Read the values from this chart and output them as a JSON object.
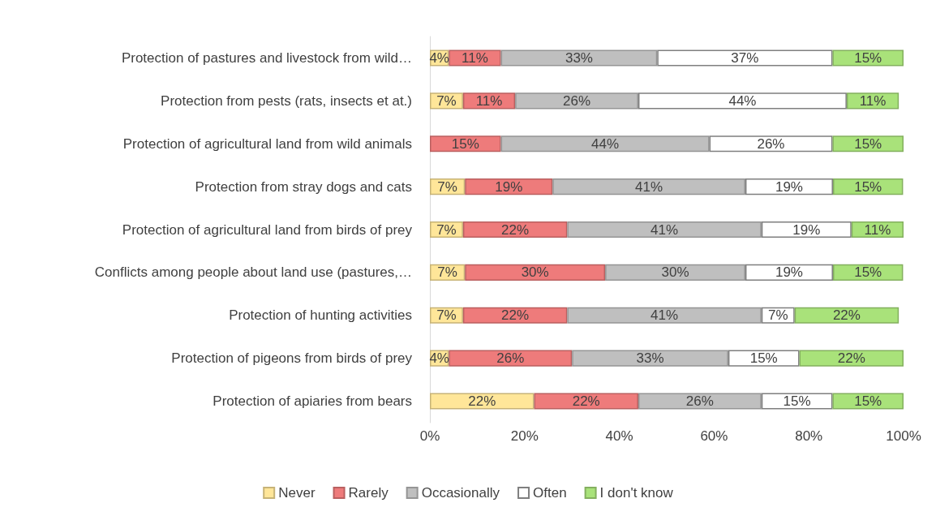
{
  "chart_data": {
    "type": "bar",
    "orientation": "horizontal",
    "stacked": true,
    "categories": [
      "Protection of pastures and livestock from wild…",
      "Protection from pests (rats, insects et at.)",
      "Protection of agricultural land from wild animals",
      "Protection from stray dogs and cats",
      "Protection of agricultural land from birds of prey",
      "Conflicts among people about land use (pastures,…",
      "Protection of hunting activities",
      "Protection of pigeons from birds of prey",
      "Protection of apiaries from bears"
    ],
    "series": [
      {
        "name": "Never",
        "color": "#ffe699",
        "values": [
          4,
          7,
          null,
          7.4,
          7,
          7.4,
          7,
          4,
          22
        ],
        "value_labels": [
          "4%",
          "7%",
          null,
          "7%",
          "7%",
          "7%",
          "7%",
          "4%",
          "22%"
        ]
      },
      {
        "name": "Rarely",
        "color": "#ee7b7b",
        "values": [
          11,
          11,
          15,
          18.5,
          22,
          29.6,
          22,
          26,
          22
        ],
        "value_labels": [
          "11%",
          "11%",
          "15%",
          "19%",
          "22%",
          "30%",
          "22%",
          "26%",
          "22%"
        ]
      },
      {
        "name": "Occasionally",
        "color": "#bfbfbf",
        "values": [
          33,
          26,
          44,
          40.7,
          41,
          29.6,
          41,
          33,
          26
        ],
        "value_labels": [
          "33%",
          "26%",
          "44%",
          "41%",
          "41%",
          "30%",
          "41%",
          "33%",
          "26%"
        ]
      },
      {
        "name": "Often",
        "color": "#ffffff",
        "values": [
          37,
          44,
          26,
          18.5,
          19,
          18.5,
          7,
          15,
          15
        ],
        "value_labels": [
          "37%",
          "44%",
          "26%",
          "19%",
          "19%",
          "19%",
          "7%",
          "15%",
          "15%"
        ]
      },
      {
        "name": "I don't know",
        "color": "#a9e27a",
        "values": [
          15,
          11,
          15,
          14.8,
          11,
          14.8,
          22,
          22,
          15
        ],
        "value_labels": [
          "15%",
          "11%",
          "15%",
          "15%",
          "11%",
          "15%",
          "22%",
          "22%",
          "15%"
        ]
      }
    ],
    "xlim": [
      0,
      100
    ],
    "xticks": [
      {
        "value": 0,
        "label": "0%"
      },
      {
        "value": 20,
        "label": "20%"
      },
      {
        "value": 40,
        "label": "40%"
      },
      {
        "value": 60,
        "label": "60%"
      },
      {
        "value": 80,
        "label": "80%"
      },
      {
        "value": 100,
        "label": "100%"
      }
    ],
    "grid": false,
    "legend": "bottom"
  }
}
